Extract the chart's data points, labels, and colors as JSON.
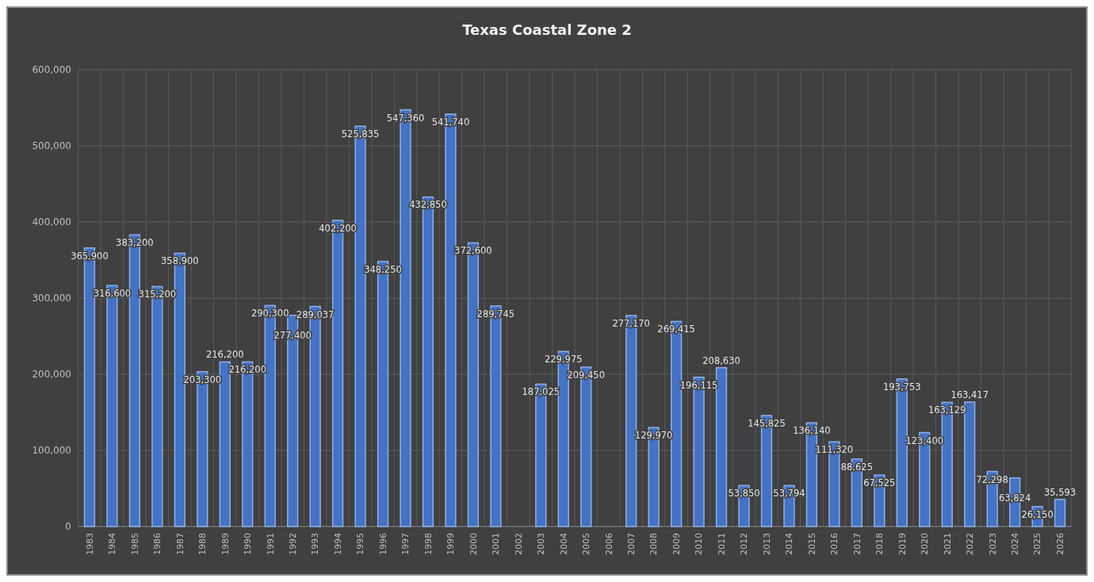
{
  "chart_data": {
    "type": "bar",
    "title": "Texas Coastal Zone 2",
    "categories": [
      "1983",
      "1984",
      "1985",
      "1986",
      "1987",
      "1988",
      "1989",
      "1990",
      "1991",
      "1992",
      "1993",
      "1994",
      "1995",
      "1996",
      "1997",
      "1998",
      "1999",
      "2000",
      "2001",
      "2002",
      "2003",
      "2004",
      "2005",
      "2006",
      "2007",
      "2008",
      "2009",
      "2010",
      "2011",
      "2012",
      "2013",
      "2014",
      "2015",
      "2016",
      "2017",
      "2018",
      "2019",
      "2020",
      "2021",
      "2022",
      "2023",
      "2024",
      "2025",
      "2026"
    ],
    "values": [
      365900,
      316600,
      383200,
      315200,
      358900,
      203300,
      216200,
      216200,
      290300,
      277400,
      289037,
      402200,
      525835,
      348250,
      547360,
      432850,
      541740,
      372600,
      289745,
      null,
      187025,
      229975,
      209450,
      null,
      277170,
      129970,
      269415,
      196115,
      208630,
      53850,
      145825,
      53794,
      136140,
      111320,
      88625,
      67525,
      193753,
      123400,
      163129,
      163417,
      72298,
      63824,
      26150,
      35593
    ],
    "value_labels": [
      "365,900",
      "316,600",
      "383,200",
      "315,200",
      "358,900",
      "203,300",
      "216,200",
      "216,200",
      "290,300",
      "277,400",
      "289,037",
      "402,200",
      "525,835",
      "348,250",
      "547,360",
      "432,850",
      "541,740",
      "372,600",
      "289,745",
      null,
      "187,025",
      "229,975",
      "209,450",
      null,
      "277,170",
      "129,970",
      "269,415",
      "196,115",
      "208,630",
      "53,850",
      "145,825",
      "53,794",
      "136,140",
      "111,320",
      "88,625",
      "67,525",
      "193,753",
      "123,400",
      "163,129",
      "163,417",
      "72,298",
      "63,824",
      "26,150",
      "35,593"
    ],
    "color": "#4472c4",
    "ylim": [
      0,
      600000
    ],
    "yticks": [
      {
        "value": 0,
        "label": "0"
      },
      {
        "value": 100000,
        "label": "100,000"
      },
      {
        "value": 200000,
        "label": "200,000"
      },
      {
        "value": 300000,
        "label": "300,000"
      },
      {
        "value": 400000,
        "label": "400,000"
      },
      {
        "value": 500000,
        "label": "500,000"
      },
      {
        "value": 600000,
        "label": "600,000"
      }
    ],
    "grid": true
  }
}
